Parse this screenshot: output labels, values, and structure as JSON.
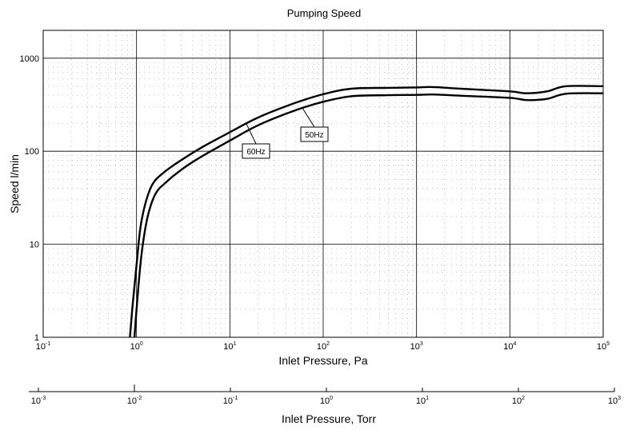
{
  "chart_data": {
    "type": "line",
    "title": "Pumping Speed",
    "xlabel": "Inlet Pressure, Pa",
    "ylabel": "Speed l/min",
    "x_scale": "log",
    "y_scale": "log",
    "xlim": [
      0.1,
      100000
    ],
    "ylim": [
      1,
      2000
    ],
    "grid": true,
    "x_ticks": [
      {
        "base": "10",
        "exp": "-1",
        "value": 0.1
      },
      {
        "base": "10",
        "exp": "0",
        "value": 1
      },
      {
        "base": "10",
        "exp": "1",
        "value": 10
      },
      {
        "base": "10",
        "exp": "2",
        "value": 100
      },
      {
        "base": "10",
        "exp": "3",
        "value": 1000
      },
      {
        "base": "10",
        "exp": "4",
        "value": 10000
      },
      {
        "base": "10",
        "exp": "5",
        "value": 100000
      }
    ],
    "y_ticks": [
      {
        "label": "1",
        "value": 1
      },
      {
        "label": "10",
        "value": 10
      },
      {
        "label": "100",
        "value": 100
      },
      {
        "label": "1000",
        "value": 1000
      }
    ],
    "secondary_x_axis": {
      "label": "Inlet Pressure, Torr",
      "ticks": [
        {
          "base": "10",
          "exp": "-3"
        },
        {
          "base": "10",
          "exp": "-2"
        },
        {
          "base": "10",
          "exp": "-1"
        },
        {
          "base": "10",
          "exp": "0"
        },
        {
          "base": "10",
          "exp": "1"
        },
        {
          "base": "10",
          "exp": "2"
        },
        {
          "base": "10",
          "exp": "3"
        }
      ]
    },
    "series": [
      {
        "name": "60Hz",
        "points": [
          [
            0.85,
            1
          ],
          [
            0.9,
            2
          ],
          [
            1.0,
            6
          ],
          [
            1.1,
            15
          ],
          [
            1.25,
            28
          ],
          [
            1.5,
            45
          ],
          [
            2,
            60
          ],
          [
            3,
            80
          ],
          [
            5,
            110
          ],
          [
            10,
            160
          ],
          [
            20,
            230
          ],
          [
            50,
            330
          ],
          [
            100,
            410
          ],
          [
            200,
            470
          ],
          [
            500,
            480
          ],
          [
            1000,
            485
          ],
          [
            1500,
            490
          ],
          [
            3000,
            470
          ],
          [
            10000,
            440
          ],
          [
            15000,
            420
          ],
          [
            25000,
            440
          ],
          [
            40000,
            500
          ],
          [
            100000,
            500
          ]
        ]
      },
      {
        "name": "50Hz",
        "points": [
          [
            0.95,
            1
          ],
          [
            1.0,
            2
          ],
          [
            1.1,
            6
          ],
          [
            1.2,
            12
          ],
          [
            1.35,
            22
          ],
          [
            1.6,
            35
          ],
          [
            2,
            45
          ],
          [
            3,
            63
          ],
          [
            5,
            88
          ],
          [
            10,
            130
          ],
          [
            20,
            190
          ],
          [
            50,
            275
          ],
          [
            100,
            340
          ],
          [
            200,
            390
          ],
          [
            500,
            400
          ],
          [
            1000,
            403
          ],
          [
            1500,
            407
          ],
          [
            3000,
            395
          ],
          [
            10000,
            375
          ],
          [
            15000,
            355
          ],
          [
            25000,
            365
          ],
          [
            40000,
            415
          ],
          [
            100000,
            420
          ]
        ]
      }
    ],
    "annotations": [
      {
        "text": "60Hz",
        "series": "60Hz"
      },
      {
        "text": "50Hz",
        "series": "50Hz"
      }
    ]
  }
}
